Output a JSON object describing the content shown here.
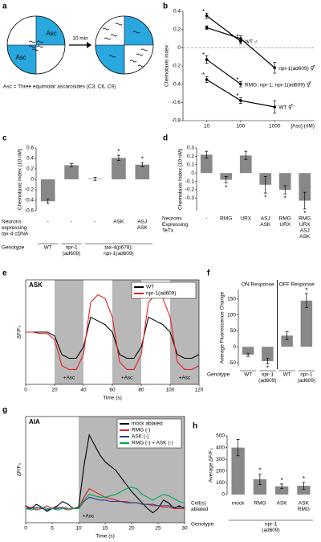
{
  "diagram": {
    "panel": "a",
    "left_label_top": "Asc",
    "left_label_bottom": "Asc",
    "arrow_label": "10 min",
    "footnote": "Asc = Three equimolar ascarosides (C3, C6, C9)"
  },
  "chart_data": [
    {
      "panel": "b",
      "type": "line",
      "y_label": "Chemotaxis Index",
      "x_label": "[Asc] (nM)",
      "x_scale": "log",
      "x": [
        10,
        100,
        1000
      ],
      "xlim": [
        2,
        15000
      ],
      "xticks": [
        10,
        100,
        1000
      ],
      "ylim": [
        -0.8,
        0.4
      ],
      "yticks": [
        -0.8,
        -0.6,
        -0.4,
        -0.2,
        0,
        0.2,
        0.4
      ],
      "zero_line": true,
      "markers": true,
      "series_labels": "end",
      "significance_label": "*",
      "series": [
        {
          "name": "WT ♂",
          "color": "#000000",
          "values": [
            0.35,
            0.07,
            null
          ],
          "errors": [
            0.03,
            0.03,
            null
          ],
          "significant": [
            true,
            true,
            null
          ]
        },
        {
          "name": "npr-1(ad609) ⚥",
          "color": "#000000",
          "values": [
            0.22,
            0.1,
            -0.22
          ],
          "errors": [
            0.02,
            0.03,
            0.06
          ],
          "significant": [
            false,
            false,
            false
          ]
        },
        {
          "name": "RMG::npr-1; npr-1(ad609) ⚥",
          "color": "#000000",
          "values": [
            -0.13,
            -0.4,
            null
          ],
          "errors": [
            0.04,
            0.03,
            null
          ],
          "significant": [
            true,
            true,
            null
          ]
        },
        {
          "name": "WT ⚥",
          "color": "#000000",
          "values": [
            -0.35,
            -0.58,
            -0.65
          ],
          "errors": [
            0.03,
            0.03,
            0.07
          ],
          "significant": [
            true,
            true,
            false
          ]
        }
      ]
    },
    {
      "panel": "c",
      "type": "bar",
      "y_label": "Chemotaxis Index (10 nM)",
      "color": "#888888",
      "ylim": [
        -0.6,
        0.6
      ],
      "yticks": [
        -0.6,
        -0.4,
        -0.2,
        0,
        0.2,
        0.4,
        0.6
      ],
      "values": [
        -0.42,
        0.27,
        0.01,
        0.41,
        0.28
      ],
      "errors": [
        0.04,
        0.03,
        0.03,
        0.05,
        0.04
      ],
      "significance_label": "*",
      "significant": [
        false,
        false,
        false,
        true,
        true
      ],
      "rows": [
        {
          "label": [
            "Neurons",
            "expressing",
            "tax-4 cDNA"
          ],
          "cells": [
            "-",
            "-",
            "-",
            "ASK",
            [
              "ASJ",
              "ASK"
            ]
          ]
        },
        {
          "label": "Genotype",
          "rule": true,
          "cells": [
            "WT",
            [
              "npr-1",
              "(ad609)"
            ],
            [
              "tax-4(p678);",
              "npr-1(ad609)"
            ],
            null,
            null
          ]
        }
      ]
    },
    {
      "panel": "d",
      "type": "bar",
      "y_label": "Chemotaxis Index (10 nM)",
      "color": "#888888",
      "ylim": [
        -0.45,
        0.3
      ],
      "yticks": [
        -0.3,
        -0.2,
        -0.1,
        0,
        0.1,
        0.2,
        0.3
      ],
      "values": [
        0.22,
        -0.08,
        0.21,
        -0.14,
        -0.2,
        -0.33
      ],
      "errors": [
        0.04,
        0.04,
        0.05,
        0.1,
        0.05,
        0.1
      ],
      "significance_label": "*",
      "significant": [
        false,
        true,
        false,
        true,
        true,
        true
      ],
      "rows": [
        {
          "label": [
            "Neurons",
            "Expressing",
            "TeTx"
          ],
          "cells": [
            "-",
            "RMG",
            "URX",
            [
              "ASJ",
              "ASK"
            ],
            [
              "RMG",
              "URX"
            ],
            [
              "RMG",
              "URX",
              "ASJ",
              "ASK"
            ]
          ]
        }
      ]
    },
    {
      "panel": "e",
      "type": "line",
      "inset_label": "ASK",
      "y_label": "ΔF/F₀",
      "x_label": "Time (s)",
      "frame": true,
      "x": [
        0,
        5,
        10,
        15,
        20,
        25,
        30,
        35,
        40,
        45,
        50,
        55,
        60,
        65,
        70,
        75,
        80,
        85,
        90,
        95,
        100,
        105,
        110,
        115,
        120
      ],
      "xlim": [
        0,
        120
      ],
      "xticks": [
        0,
        20,
        40,
        60,
        80,
        100,
        120
      ],
      "ylim": [
        -0.7,
        0.7
      ],
      "stimulus_intervals": [
        [
          20,
          40
        ],
        [
          60,
          80
        ],
        [
          100,
          120
        ]
      ],
      "stimulus_label": "+Asc",
      "legend": "upper right",
      "series": [
        {
          "name": "WT",
          "color": "#000000",
          "values": [
            0,
            0,
            0,
            0,
            -0.05,
            -0.3,
            -0.35,
            -0.35,
            -0.2,
            0.2,
            0.15,
            0.1,
            0,
            -0.3,
            -0.35,
            -0.35,
            -0.2,
            0.2,
            0.15,
            0.1,
            0,
            -0.3,
            -0.35,
            -0.35,
            -0.3
          ]
        },
        {
          "name": "npr-1(ad609)",
          "color": "#e31e24",
          "values": [
            0,
            0,
            -0.02,
            -0.02,
            -0.1,
            -0.45,
            -0.5,
            -0.5,
            -0.3,
            0.4,
            0.5,
            0.45,
            0.2,
            -0.4,
            -0.5,
            -0.5,
            -0.3,
            0.4,
            0.5,
            0.45,
            0.2,
            -0.4,
            -0.5,
            -0.5,
            -0.45
          ]
        }
      ]
    },
    {
      "panel": "f",
      "type": "bar",
      "y_label": "Average Fluorescence Change",
      "color": "#888888",
      "ylim": [
        -60,
        180
      ],
      "yticks": [
        -50,
        0,
        50,
        100,
        150
      ],
      "values": [
        -25,
        -45,
        35,
        145
      ],
      "errors": [
        5,
        8,
        12,
        22
      ],
      "significance_label": "*",
      "significant": [
        false,
        true,
        false,
        true
      ],
      "group_headers": [
        "ON Response",
        null,
        "OFF Response",
        null
      ],
      "rows": [
        {
          "label": "Genotype",
          "rule": true,
          "cells": [
            "WT",
            [
              "npr-1",
              "(ad609)"
            ],
            "WT",
            [
              "npr-1",
              "(ad609)"
            ]
          ]
        }
      ]
    },
    {
      "panel": "g",
      "type": "line",
      "inset_label": "AIA",
      "y_label": "ΔF/F₀",
      "x_label": "Time (s)",
      "frame": true,
      "x": [
        0,
        1,
        2,
        3,
        4,
        5,
        6,
        7,
        8,
        9,
        10,
        11,
        12,
        13,
        14,
        15,
        16,
        17,
        18,
        19,
        20,
        21,
        22,
        23,
        24,
        25,
        26,
        27,
        28,
        29,
        30
      ],
      "xlim": [
        0,
        30
      ],
      "xticks": [
        0,
        5,
        10,
        15,
        20,
        25,
        30
      ],
      "ylim": [
        -0.1,
        0.65
      ],
      "stimulus_intervals": [
        [
          10,
          30
        ]
      ],
      "stimulus_label": "+Asc",
      "legend": "upper right",
      "series": [
        {
          "name": "mock ablated",
          "color": "#000000",
          "values": [
            0.02,
            0,
            0.03,
            0.01,
            -0.02,
            0,
            0.02,
            0.05,
            0.03,
            0,
            0.01,
            0.3,
            0.52,
            0.45,
            0.38,
            0.33,
            0.3,
            0.27,
            0.22,
            0.17,
            0.12,
            0.08,
            0.04,
            0.0,
            -0.03,
            0.0,
            0.06,
            0.04,
            0.0,
            0.02,
            0.0
          ]
        },
        {
          "name": "RMG (-)",
          "color": "#e31e24",
          "values": [
            0,
            0.01,
            -0.01,
            0,
            0.02,
            0,
            0.01,
            0,
            -0.01,
            0,
            0,
            0.08,
            0.14,
            0.12,
            0.1,
            0.08,
            0.07,
            0.06,
            0.05,
            0.05,
            0.04,
            0.04,
            0.03,
            0.03,
            0.02,
            0.02,
            0.01,
            0.01,
            0.0,
            0.0,
            0.0
          ]
        },
        {
          "name": "ASK (-)",
          "color": "#2b3990",
          "values": [
            0,
            0,
            0.01,
            0,
            -0.01,
            0,
            0,
            0.01,
            0,
            0,
            0,
            0.05,
            0.08,
            0.07,
            0.06,
            0.06,
            0.05,
            0.05,
            0.05,
            0.04,
            0.04,
            0.04,
            0.03,
            0.03,
            0.03,
            0.02,
            0.02,
            0.02,
            0.01,
            0.01,
            0.01
          ]
        },
        {
          "name": "RMG (-) + ASK (-)",
          "color": "#00a651",
          "values": [
            0,
            -0.01,
            0,
            0.01,
            0,
            0,
            -0.01,
            0,
            0,
            0,
            0,
            0.06,
            0.1,
            0.09,
            0.08,
            0.08,
            0.09,
            0.1,
            0.12,
            0.14,
            0.15,
            0.14,
            0.1,
            0.08,
            0.06,
            0.08,
            0.1,
            0.09,
            0.07,
            0.05,
            0.04
          ]
        }
      ]
    },
    {
      "panel": "h",
      "type": "bar",
      "y_label": "Average ΔF/F₀",
      "color": "#888888",
      "ylim": [
        0,
        500
      ],
      "yticks": [
        0,
        100,
        200,
        300,
        400,
        500
      ],
      "values": [
        400,
        130,
        70,
        75
      ],
      "errors": [
        70,
        45,
        20,
        30
      ],
      "significance_label": "*",
      "significant": [
        false,
        true,
        true,
        true
      ],
      "rows": [
        {
          "label": [
            "Cell(s)",
            "ablated"
          ],
          "cells": [
            "mock",
            "RMG",
            "ASK",
            [
              "ASK",
              "RMG"
            ]
          ]
        },
        {
          "label": "Genotype",
          "rule": true,
          "cells": [
            [
              "npr-1",
              "(ad609)"
            ],
            null,
            null,
            null
          ]
        }
      ]
    }
  ]
}
